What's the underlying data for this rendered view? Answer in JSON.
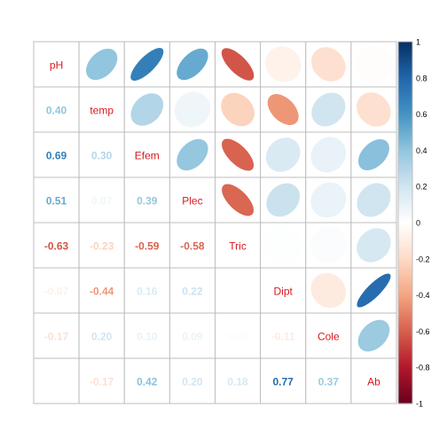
{
  "chart_data": {
    "type": "heatmap",
    "title": "",
    "variables": [
      "pH",
      "temp",
      "Efem",
      "Plec",
      "Tric",
      "Dipt",
      "Cole",
      "Ab"
    ],
    "matrix": [
      [
        1.0,
        0.4,
        0.69,
        0.51,
        -0.63,
        -0.07,
        -0.17,
        -0.01
      ],
      [
        0.4,
        1.0,
        0.3,
        0.07,
        -0.23,
        -0.44,
        0.2,
        -0.17
      ],
      [
        0.69,
        0.3,
        1.0,
        0.39,
        -0.59,
        0.16,
        0.1,
        0.42
      ],
      [
        0.51,
        0.07,
        0.39,
        1.0,
        -0.58,
        0.22,
        0.09,
        0.2
      ],
      [
        -0.63,
        -0.23,
        -0.59,
        -0.58,
        1.0,
        0.01,
        0.02,
        0.18
      ],
      [
        -0.07,
        -0.44,
        0.16,
        0.22,
        0.01,
        1.0,
        -0.11,
        0.77
      ],
      [
        -0.17,
        0.2,
        0.1,
        0.09,
        0.02,
        -0.11,
        1.0,
        0.37
      ],
      [
        -0.01,
        -0.17,
        0.42,
        0.2,
        0.18,
        0.77,
        0.37,
        1.0
      ]
    ],
    "value_labels": [
      [
        "",
        "",
        "",
        "",
        "",
        "",
        "",
        ""
      ],
      [
        "0.40",
        "",
        "",
        "",
        "",
        "",
        "",
        ""
      ],
      [
        "0.69",
        "0.30",
        "",
        "",
        "",
        "",
        "",
        ""
      ],
      [
        "0.51",
        "0.07",
        "0.39",
        "",
        "",
        "",
        "",
        ""
      ],
      [
        "-0.63",
        "-0.23",
        "-0.59",
        "-0.58",
        "",
        "",
        "",
        ""
      ],
      [
        "-0.07",
        "-0.44",
        "0.16",
        "0.22",
        "0.01",
        "",
        "",
        ""
      ],
      [
        "-0.17",
        "0.20",
        "0.10",
        "0.09",
        "0.02",
        "-0.11",
        "",
        ""
      ],
      [
        "-0.01",
        "-0.17",
        "0.42",
        "0.20",
        "0.18",
        "0.77",
        "0.37",
        ""
      ]
    ],
    "upper_glyph": "ellipse",
    "lower_glyph": "number",
    "diagonal": "variable names",
    "grid": true,
    "legend_position": "right",
    "colorbar": {
      "range": [
        -1,
        1
      ],
      "ticks": [
        "1",
        "0.8",
        "0.6",
        "0.4",
        "0.2",
        "0",
        "-0.2",
        "-0.4",
        "-0.6",
        "-0.8",
        "-1"
      ],
      "colors": [
        "#67001F",
        "#B2182B",
        "#D6604D",
        "#F4A582",
        "#FDDBC7",
        "#FFFFFF",
        "#D1E5F0",
        "#92C5DE",
        "#4393C3",
        "#2166AC",
        "#053061"
      ]
    },
    "label_color": "#d7191c"
  }
}
